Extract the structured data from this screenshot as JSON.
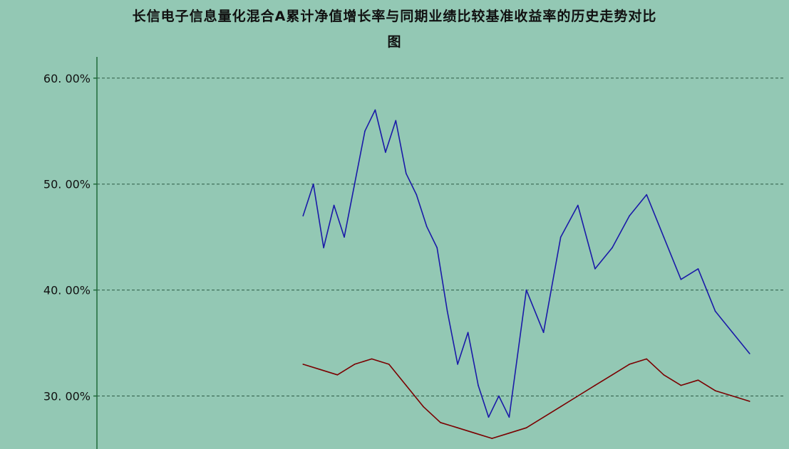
{
  "chart_data": {
    "type": "line",
    "title_line1": "长信电子信息量化混合A累计净值增长率与同期业绩比较基准收益率的历史走势对比",
    "title_line2": "图",
    "yticks": [
      30,
      40,
      50,
      60
    ],
    "ytick_labels": [
      "30. 00%",
      "40. 00%",
      "50. 00%",
      "60. 00%"
    ],
    "ylim": [
      25,
      62
    ],
    "grid": true,
    "series": [
      {
        "color": "#1a1aa8",
        "values": [
          [
            60,
            47
          ],
          [
            63,
            50
          ],
          [
            66,
            44
          ],
          [
            69,
            48
          ],
          [
            72,
            45
          ],
          [
            75,
            50
          ],
          [
            78,
            55
          ],
          [
            81,
            57
          ],
          [
            84,
            53
          ],
          [
            87,
            56
          ],
          [
            90,
            51
          ],
          [
            93,
            49
          ],
          [
            96,
            46
          ],
          [
            99,
            44
          ],
          [
            102,
            38
          ],
          [
            105,
            33
          ],
          [
            108,
            36
          ],
          [
            111,
            31
          ],
          [
            114,
            28
          ],
          [
            117,
            30
          ],
          [
            120,
            28
          ],
          [
            125,
            40
          ],
          [
            130,
            36
          ],
          [
            135,
            45
          ],
          [
            140,
            48
          ],
          [
            145,
            42
          ],
          [
            150,
            44
          ],
          [
            155,
            47
          ],
          [
            160,
            49
          ],
          [
            165,
            45
          ],
          [
            170,
            41
          ],
          [
            175,
            42
          ],
          [
            180,
            38
          ],
          [
            185,
            36
          ],
          [
            190,
            34
          ]
        ]
      },
      {
        "color": "#7a0000",
        "values": [
          [
            60,
            33
          ],
          [
            65,
            32.5
          ],
          [
            70,
            32
          ],
          [
            75,
            33
          ],
          [
            80,
            33.5
          ],
          [
            85,
            33
          ],
          [
            90,
            31
          ],
          [
            95,
            29
          ],
          [
            100,
            27.5
          ],
          [
            105,
            27
          ],
          [
            110,
            26.5
          ],
          [
            115,
            26
          ],
          [
            120,
            26.5
          ],
          [
            125,
            27
          ],
          [
            130,
            28
          ],
          [
            135,
            29
          ],
          [
            140,
            30
          ],
          [
            145,
            31
          ],
          [
            150,
            32
          ],
          [
            155,
            33
          ],
          [
            160,
            33.5
          ],
          [
            165,
            32
          ],
          [
            170,
            31
          ],
          [
            175,
            31.5
          ],
          [
            180,
            30.5
          ],
          [
            185,
            30
          ],
          [
            190,
            29.5
          ]
        ]
      }
    ]
  }
}
